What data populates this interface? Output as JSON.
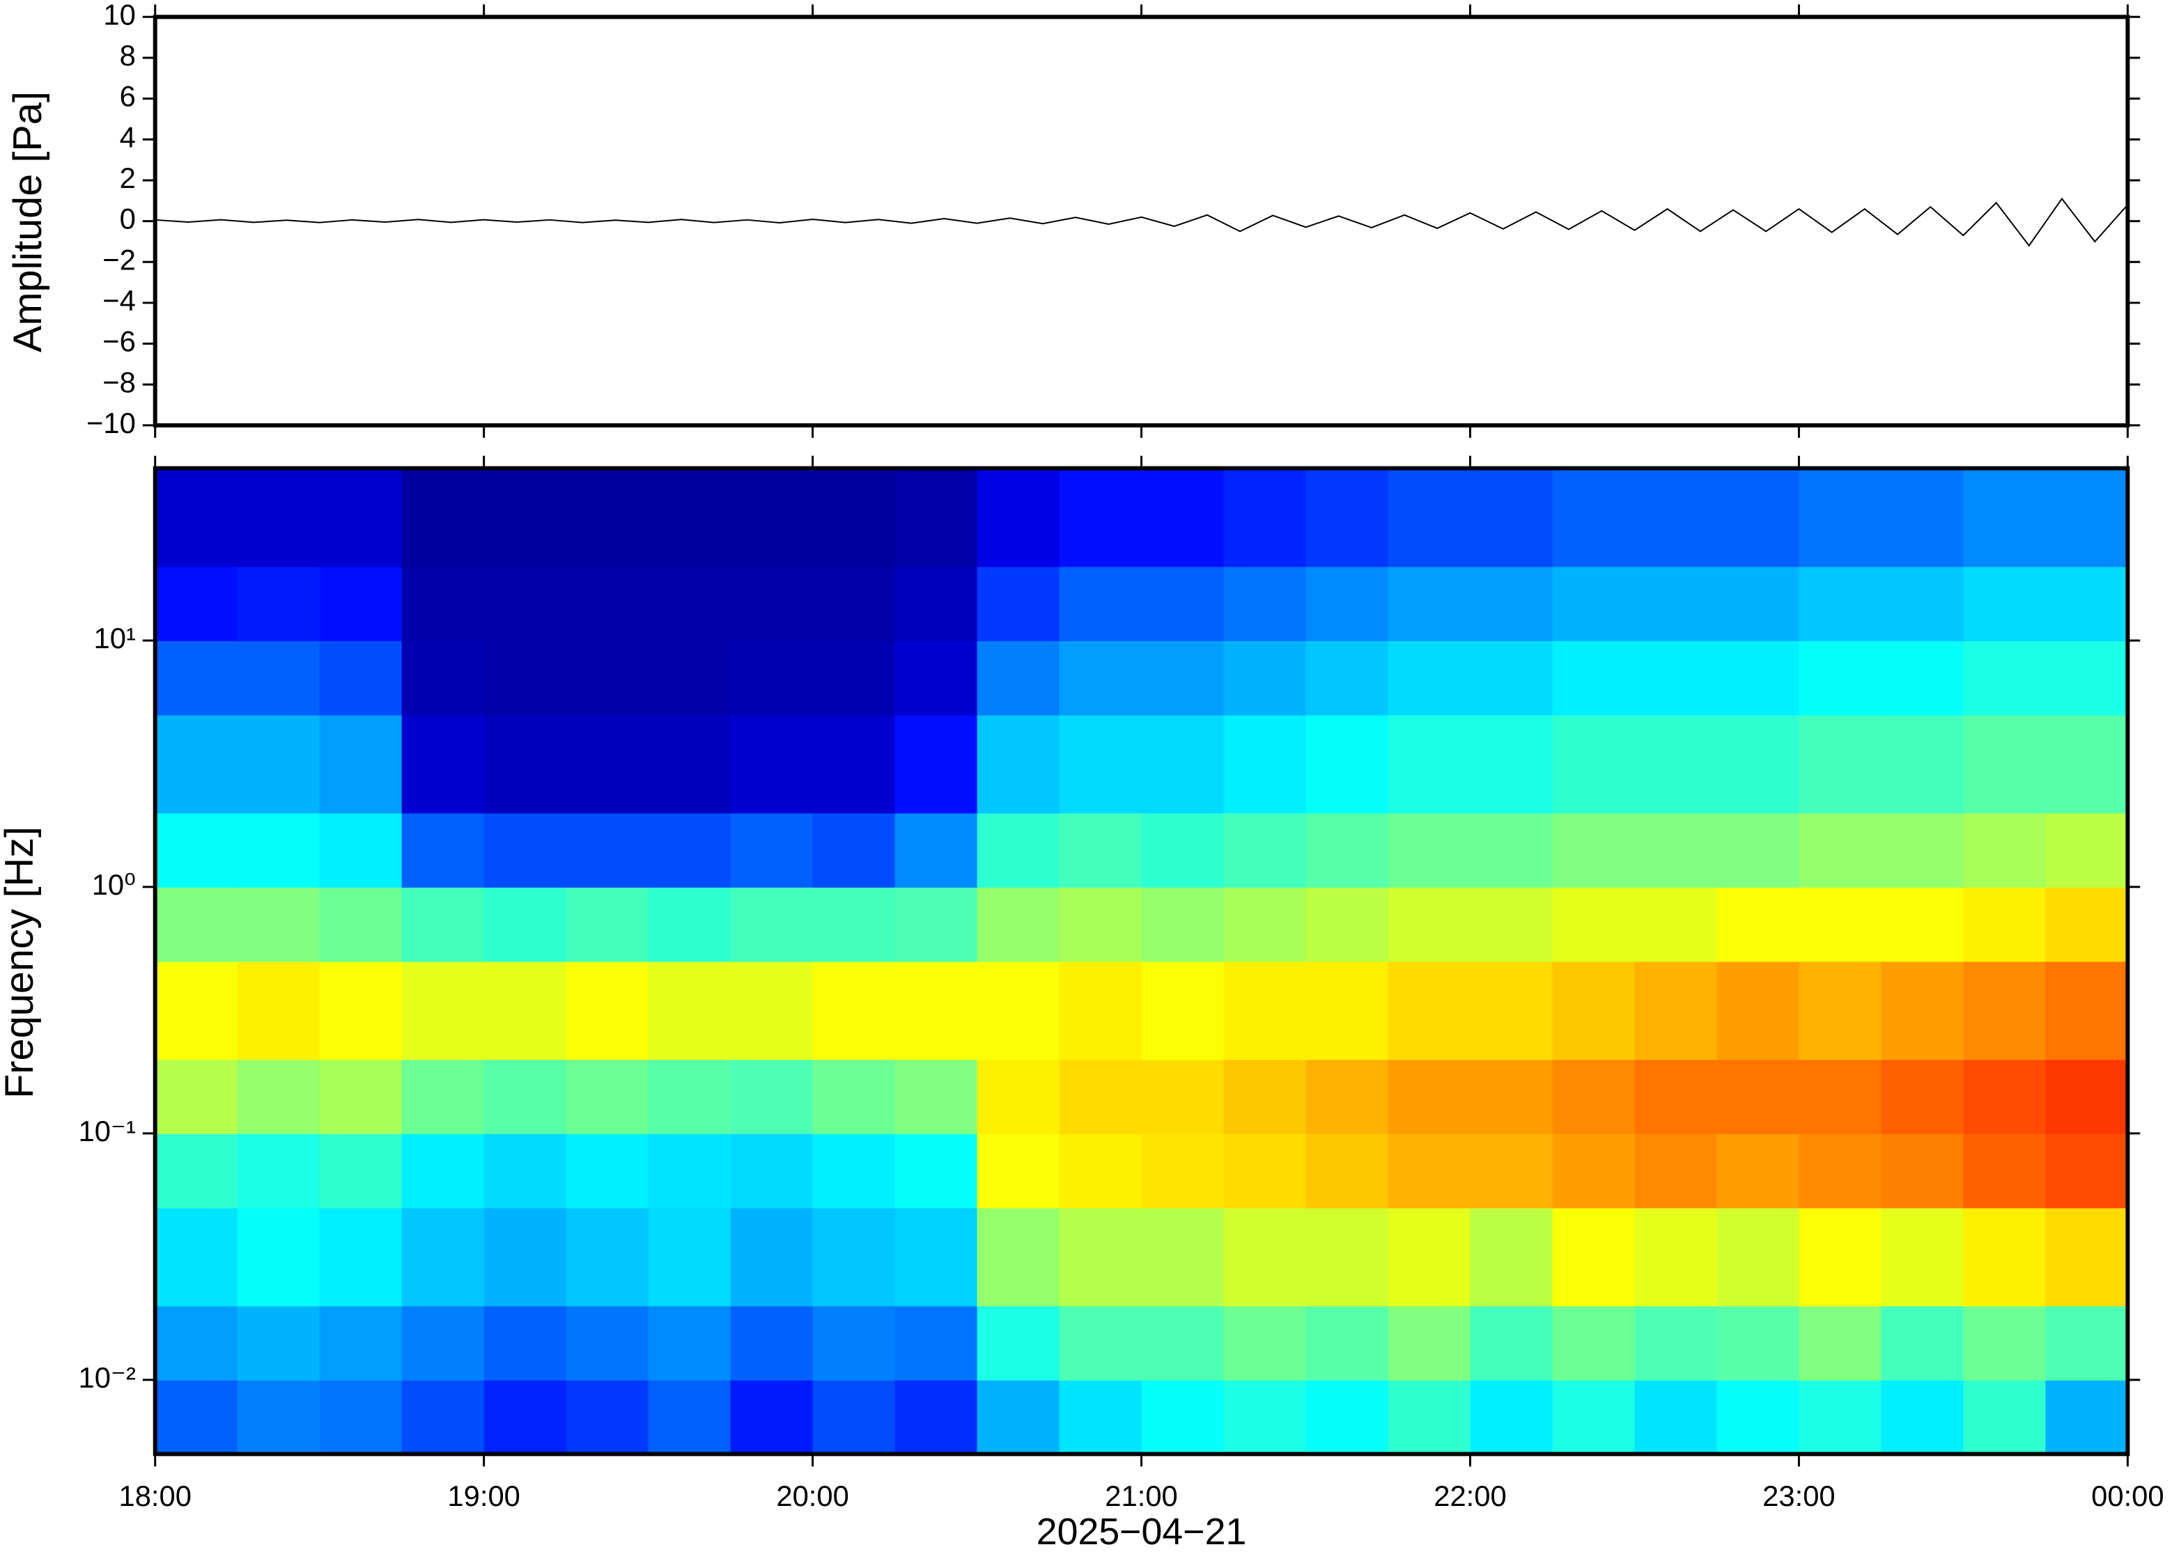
{
  "chart_data": [
    {
      "type": "line",
      "ylabel": "Amplitude [Pa]",
      "color": "#000000",
      "xlim": [
        18,
        24
      ],
      "ylim": [
        -10,
        10
      ],
      "yticks": [
        {
          "value": -10,
          "label": "−10"
        },
        {
          "value": -8,
          "label": "−8"
        },
        {
          "value": -6,
          "label": "−6"
        },
        {
          "value": -4,
          "label": "−4"
        },
        {
          "value": -2,
          "label": "−2"
        },
        0,
        2,
        4,
        6,
        8,
        10
      ],
      "x": [
        18.0,
        18.1,
        18.2,
        18.3,
        18.4,
        18.5,
        18.6,
        18.7,
        18.8,
        18.9,
        19.0,
        19.1,
        19.2,
        19.3,
        19.4,
        19.5,
        19.6,
        19.7,
        19.8,
        19.9,
        20.0,
        20.1,
        20.2,
        20.3,
        20.4,
        20.5,
        20.6,
        20.7,
        20.8,
        20.9,
        21.0,
        21.1,
        21.2,
        21.3,
        21.4,
        21.5,
        21.6,
        21.7,
        21.8,
        21.9,
        22.0,
        22.1,
        22.2,
        22.3,
        22.4,
        22.5,
        22.6,
        22.7,
        22.8,
        22.9,
        23.0,
        23.1,
        23.2,
        23.3,
        23.4,
        23.5,
        23.6,
        23.7,
        23.8,
        23.9,
        24.0
      ],
      "values": [
        0.06,
        -0.05,
        0.07,
        -0.06,
        0.05,
        -0.07,
        0.06,
        -0.05,
        0.08,
        -0.06,
        0.07,
        -0.05,
        0.06,
        -0.07,
        0.05,
        -0.06,
        0.08,
        -0.07,
        0.06,
        -0.08,
        0.09,
        -0.07,
        0.08,
        -0.1,
        0.12,
        -0.1,
        0.15,
        -0.12,
        0.18,
        -0.15,
        0.2,
        -0.25,
        0.3,
        -0.5,
        0.28,
        -0.3,
        0.25,
        -0.32,
        0.3,
        -0.35,
        0.4,
        -0.38,
        0.45,
        -0.4,
        0.5,
        -0.45,
        0.6,
        -0.5,
        0.55,
        -0.5,
        0.6,
        -0.55,
        0.6,
        -0.65,
        0.7,
        -0.7,
        0.9,
        -1.2,
        1.1,
        -1.0,
        0.8
      ]
    },
    {
      "type": "heatmap",
      "ylabel": "Frequency [Hz]",
      "xlabel": "2025−04−21",
      "colormap": "jet",
      "log_y": true,
      "xlim": [
        18,
        24
      ],
      "ylim": [
        0.005,
        50
      ],
      "zlim": [
        0,
        100
      ],
      "xticks": [
        {
          "value": 18,
          "label": "18:00"
        },
        {
          "value": 19,
          "label": "19:00"
        },
        {
          "value": 20,
          "label": "20:00"
        },
        {
          "value": 21,
          "label": "21:00"
        },
        {
          "value": 22,
          "label": "22:00"
        },
        {
          "value": 23,
          "label": "23:00"
        },
        {
          "value": 24,
          "label": "00:00"
        }
      ],
      "yticks": [
        {
          "value": 0.01,
          "label": "10⁻²"
        },
        {
          "value": 0.1,
          "label": "10⁻¹"
        },
        {
          "value": 1,
          "label": "10⁰"
        },
        {
          "value": 10,
          "label": "10¹"
        }
      ],
      "x_bins": [
        18,
        18.25,
        18.5,
        18.75,
        19,
        19.25,
        19.5,
        19.75,
        20,
        20.25,
        20.5,
        20.75,
        21,
        21.25,
        21.5,
        21.75,
        22,
        22.25,
        22.5,
        22.75,
        23,
        23.25,
        23.5,
        23.75,
        24
      ],
      "y_bins": [
        0.005,
        0.01,
        0.02,
        0.05,
        0.1,
        0.2,
        0.5,
        1,
        2,
        5,
        10,
        20,
        50
      ],
      "z": [
        [
          22,
          25,
          24,
          20,
          16,
          18,
          22,
          15,
          20,
          17,
          30,
          35,
          38,
          40,
          38,
          42,
          36,
          40,
          35,
          38,
          40,
          36,
          42,
          30
        ],
        [
          28,
          30,
          28,
          25,
          22,
          24,
          26,
          22,
          25,
          24,
          40,
          45,
          45,
          48,
          46,
          50,
          44,
          48,
          45,
          46,
          50,
          44,
          48,
          45
        ],
        [
          35,
          38,
          36,
          32,
          30,
          32,
          34,
          30,
          32,
          33,
          52,
          55,
          55,
          58,
          58,
          60,
          56,
          62,
          60,
          58,
          62,
          60,
          64,
          66
        ],
        [
          42,
          40,
          42,
          36,
          34,
          36,
          35,
          34,
          36,
          38,
          62,
          64,
          65,
          66,
          68,
          70,
          70,
          72,
          74,
          72,
          74,
          75,
          78,
          80
        ],
        [
          55,
          52,
          54,
          48,
          46,
          48,
          46,
          45,
          48,
          50,
          64,
          66,
          66,
          68,
          70,
          72,
          72,
          74,
          76,
          76,
          76,
          78,
          80,
          82
        ],
        [
          62,
          64,
          62,
          60,
          60,
          62,
          60,
          60,
          62,
          62,
          62,
          64,
          62,
          64,
          64,
          66,
          66,
          68,
          70,
          72,
          70,
          72,
          74,
          76
        ],
        [
          50,
          50,
          48,
          44,
          42,
          44,
          42,
          44,
          44,
          45,
          52,
          54,
          52,
          54,
          56,
          58,
          58,
          60,
          60,
          62,
          62,
          62,
          64,
          66
        ],
        [
          38,
          38,
          36,
          22,
          20,
          20,
          20,
          22,
          20,
          26,
          42,
          44,
          42,
          44,
          46,
          48,
          48,
          50,
          50,
          50,
          52,
          52,
          54,
          56
        ],
        [
          30,
          30,
          28,
          8,
          6,
          6,
          6,
          8,
          8,
          14,
          32,
          34,
          34,
          36,
          38,
          40,
          40,
          42,
          42,
          42,
          44,
          44,
          46,
          46
        ],
        [
          22,
          22,
          20,
          5,
          4,
          4,
          4,
          5,
          5,
          8,
          25,
          28,
          28,
          30,
          32,
          34,
          34,
          36,
          36,
          36,
          38,
          38,
          40,
          40
        ],
        [
          14,
          15,
          14,
          4,
          4,
          4,
          4,
          4,
          4,
          6,
          18,
          22,
          22,
          24,
          26,
          28,
          28,
          30,
          30,
          30,
          32,
          32,
          34,
          34
        ],
        [
          8,
          8,
          8,
          3,
          3,
          3,
          3,
          3,
          3,
          4,
          10,
          14,
          14,
          16,
          18,
          20,
          20,
          22,
          22,
          22,
          24,
          24,
          26,
          26
        ]
      ]
    }
  ]
}
